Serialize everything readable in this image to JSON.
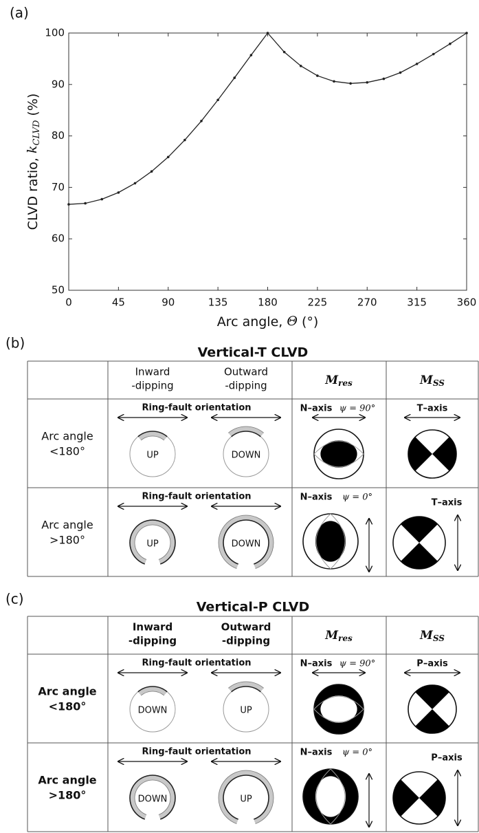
{
  "chart_data": {
    "type": "line",
    "panel_label": "(a)",
    "xlabel": {
      "text": "Arc angle, ",
      "symbol": "Θ",
      "unit": " (°)"
    },
    "ylabel": {
      "text": "CLVD ratio, ",
      "symbol": "k",
      "subscript": "CLVD",
      "unit": " (%)"
    },
    "x": [
      0,
      15,
      30,
      45,
      60,
      75,
      90,
      105,
      120,
      135,
      150,
      165,
      180,
      195,
      210,
      225,
      240,
      255,
      270,
      285,
      300,
      315,
      330,
      345,
      360
    ],
    "values": [
      66.7,
      66.9,
      67.7,
      69.0,
      70.8,
      73.1,
      75.9,
      79.2,
      82.9,
      87.0,
      91.3,
      95.7,
      100,
      96.3,
      93.6,
      91.7,
      90.6,
      90.2,
      90.4,
      91.1,
      92.3,
      94.0,
      95.9,
      97.9,
      100
    ],
    "color": "#222222",
    "xlim": [
      0,
      360
    ],
    "xticks": [
      0,
      45,
      90,
      135,
      180,
      225,
      270,
      315,
      360
    ],
    "ylim": [
      50,
      100
    ],
    "yticks": [
      50,
      60,
      70,
      80,
      90,
      100
    ]
  },
  "panel_b": {
    "label": "(b)",
    "title": "Vertical-T CLVD",
    "bold_labels": false,
    "inverse": false,
    "mss_axis_orientation": "T",
    "headers": {
      "inward": [
        "Inward",
        "-dipping"
      ],
      "outward": [
        "Outward",
        "-dipping"
      ],
      "mres": {
        "symbol": "M",
        "subscript": "res"
      },
      "mss": {
        "symbol": "M",
        "subscript": "SS"
      }
    },
    "rows": [
      {
        "label": [
          "Arc angle",
          "<180°"
        ],
        "ring_fault": "Ring-fault orientation",
        "inward": "UP",
        "outward": "DOWN",
        "mres_axis": "N–axis",
        "psi": "ψ = 90°",
        "mss_axis": "T–axis"
      },
      {
        "label": [
          "Arc angle",
          ">180°"
        ],
        "ring_fault": "Ring-fault orientation",
        "inward": "UP",
        "outward": "DOWN",
        "mres_axis": "N–axis",
        "psi": "ψ = 0°",
        "mss_axis": "T–axis"
      }
    ]
  },
  "panel_c": {
    "label": "(c)",
    "title": "Vertical-P CLVD",
    "bold_labels": true,
    "inverse": true,
    "mss_axis_orientation": "P",
    "headers": {
      "inward": [
        "Inward",
        "-dipping"
      ],
      "outward": [
        "Outward",
        "-dipping"
      ],
      "mres": {
        "symbol": "M",
        "subscript": "res"
      },
      "mss": {
        "symbol": "M",
        "subscript": "SS"
      }
    },
    "rows": [
      {
        "label": [
          "Arc angle",
          "<180°"
        ],
        "ring_fault": "Ring-fault orientation",
        "inward": "DOWN",
        "outward": "UP",
        "mres_axis": "N–axis",
        "psi": "ψ = 90°",
        "mss_axis": "P–axis"
      },
      {
        "label": [
          "Arc angle",
          ">180°"
        ],
        "ring_fault": "Ring-fault orientation",
        "inward": "DOWN",
        "outward": "UP",
        "mres_axis": "N–axis",
        "psi": "ψ = 0°",
        "mss_axis": "P–axis"
      }
    ]
  }
}
